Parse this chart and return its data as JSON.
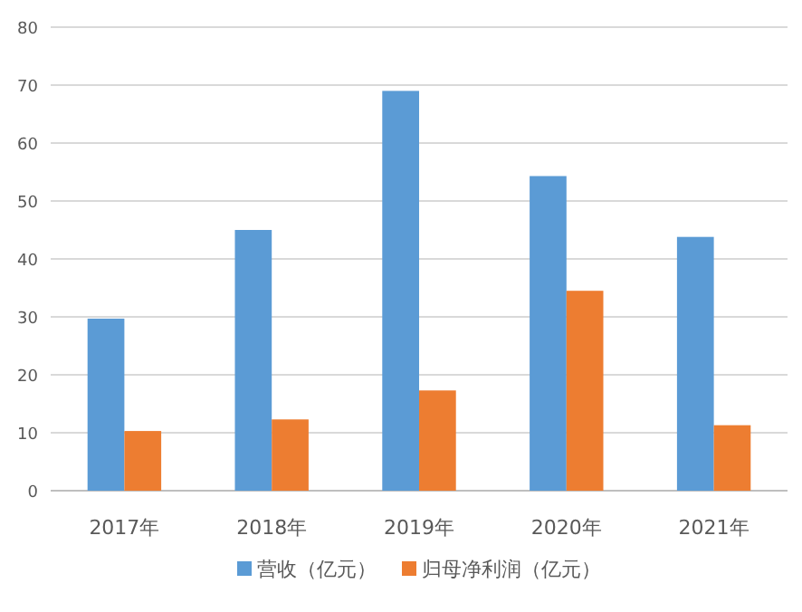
{
  "chart_data": {
    "type": "bar",
    "categories": [
      "2017年",
      "2018年",
      "2019年",
      "2020年",
      "2021年"
    ],
    "series": [
      {
        "name": "营收（亿元）",
        "color": "#5b9bd5",
        "values": [
          29.7,
          45,
          69,
          54.3,
          43.8
        ]
      },
      {
        "name": "归母净利润（亿元）",
        "color": "#ed7d31",
        "values": [
          10.3,
          12.3,
          17.3,
          34.5,
          11.3
        ]
      }
    ],
    "ylim": [
      0,
      80
    ],
    "yticks": [
      0,
      10,
      20,
      30,
      40,
      50,
      60,
      70,
      80
    ],
    "grid": "y",
    "legend": "bottom"
  }
}
